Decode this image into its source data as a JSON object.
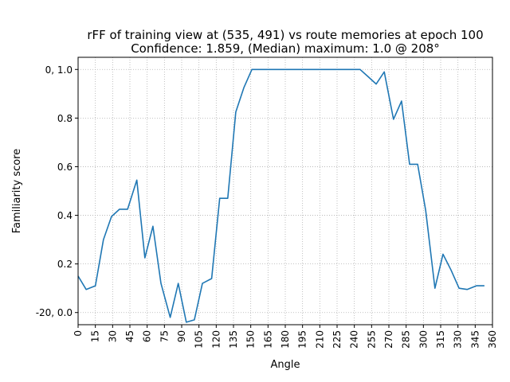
{
  "chart_data": {
    "type": "line",
    "title": "rFF of training view at (535, 491) vs route memories at epoch 100",
    "subtitle": "Confidence: 1.859, (Median) maximum: 1.0 @ 208°",
    "xlabel": "Angle",
    "ylabel": "Familiarity score",
    "xlim": [
      0,
      360
    ],
    "ylim": [
      -0.05,
      1.05
    ],
    "grid": true,
    "x_ticks": [
      0,
      15,
      30,
      45,
      60,
      75,
      90,
      105,
      120,
      135,
      150,
      165,
      180,
      195,
      210,
      225,
      240,
      255,
      270,
      285,
      300,
      315,
      330,
      345,
      360
    ],
    "y_ticks": [
      {
        "value": 0.0,
        "label": "-20, 0.0"
      },
      {
        "value": 0.2,
        "label": "0.2"
      },
      {
        "value": 0.4,
        "label": "0.4"
      },
      {
        "value": 0.6,
        "label": "0.6"
      },
      {
        "value": 0.8,
        "label": "0.8"
      },
      {
        "value": 1.0,
        "label": "0, 1.0"
      }
    ],
    "series": [
      {
        "color": "#1f77b4",
        "x": [
          0,
          7,
          15,
          22,
          29,
          36,
          43,
          51,
          58,
          65,
          72,
          80,
          87,
          94,
          101,
          108,
          116,
          123,
          130,
          137,
          144,
          151,
          158,
          166,
          173,
          180,
          187,
          194,
          202,
          209,
          216,
          223,
          230,
          238,
          245,
          252,
          259,
          266,
          274,
          281,
          288,
          295,
          302,
          310,
          317,
          324,
          331,
          338,
          346,
          353
        ],
        "y": [
          0.15,
          0.095,
          0.11,
          0.3,
          0.395,
          0.425,
          0.425,
          0.545,
          0.225,
          0.355,
          0.12,
          -0.02,
          0.12,
          -0.04,
          -0.03,
          0.12,
          0.14,
          0.47,
          0.47,
          0.825,
          0.925,
          1.0,
          1.0,
          1.0,
          1.0,
          1.0,
          1.0,
          1.0,
          1.0,
          1.0,
          1.0,
          1.0,
          1.0,
          1.0,
          1.0,
          0.97,
          0.94,
          0.99,
          0.795,
          0.87,
          0.61,
          0.61,
          0.42,
          0.1,
          0.24,
          0.175,
          0.1,
          0.095,
          0.11,
          0.11
        ]
      }
    ]
  }
}
